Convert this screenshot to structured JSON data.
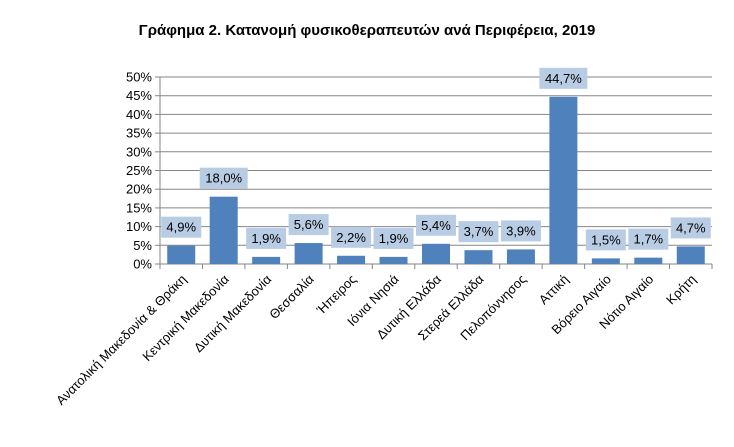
{
  "chart_data": {
    "type": "bar",
    "title": "Γράφημα 2. Κατανομή φυσικοθεραπευτών ανά Περιφέρεια, 2019",
    "xlabel": "",
    "ylabel": "",
    "ylim": [
      0,
      50
    ],
    "yticks": [
      "0%",
      "5%",
      "10%",
      "15%",
      "20%",
      "25%",
      "30%",
      "35%",
      "40%",
      "45%",
      "50%"
    ],
    "grid": true,
    "bar_color": "#4f81bd",
    "label_box_color": "#b8cce4",
    "categories": [
      "Ανατολική Μακεδονία & Θράκη",
      "Κεντρική Μακεδονία",
      "Δυτική Μακεδονία",
      "Θεσσαλία",
      "Ήπειρος",
      "Ιόνια Νησιά",
      "Δυτική Ελλάδα",
      "Στερεά Ελλάδα",
      "Πελοπόννησος",
      "Αττική",
      "Βόρειο Αιγαίο",
      "Νότιο Αιγαίο",
      "Κρήτη"
    ],
    "values": [
      4.9,
      18.0,
      1.9,
      5.6,
      2.2,
      1.9,
      5.4,
      3.7,
      3.9,
      44.7,
      1.5,
      1.7,
      4.7
    ],
    "data_labels": [
      "4,9%",
      "18,0%",
      "1,9%",
      "5,6%",
      "2,2%",
      "1,9%",
      "5,4%",
      "3,7%",
      "3,9%",
      "44,7%",
      "1,5%",
      "1,7%",
      "4,7%"
    ]
  }
}
